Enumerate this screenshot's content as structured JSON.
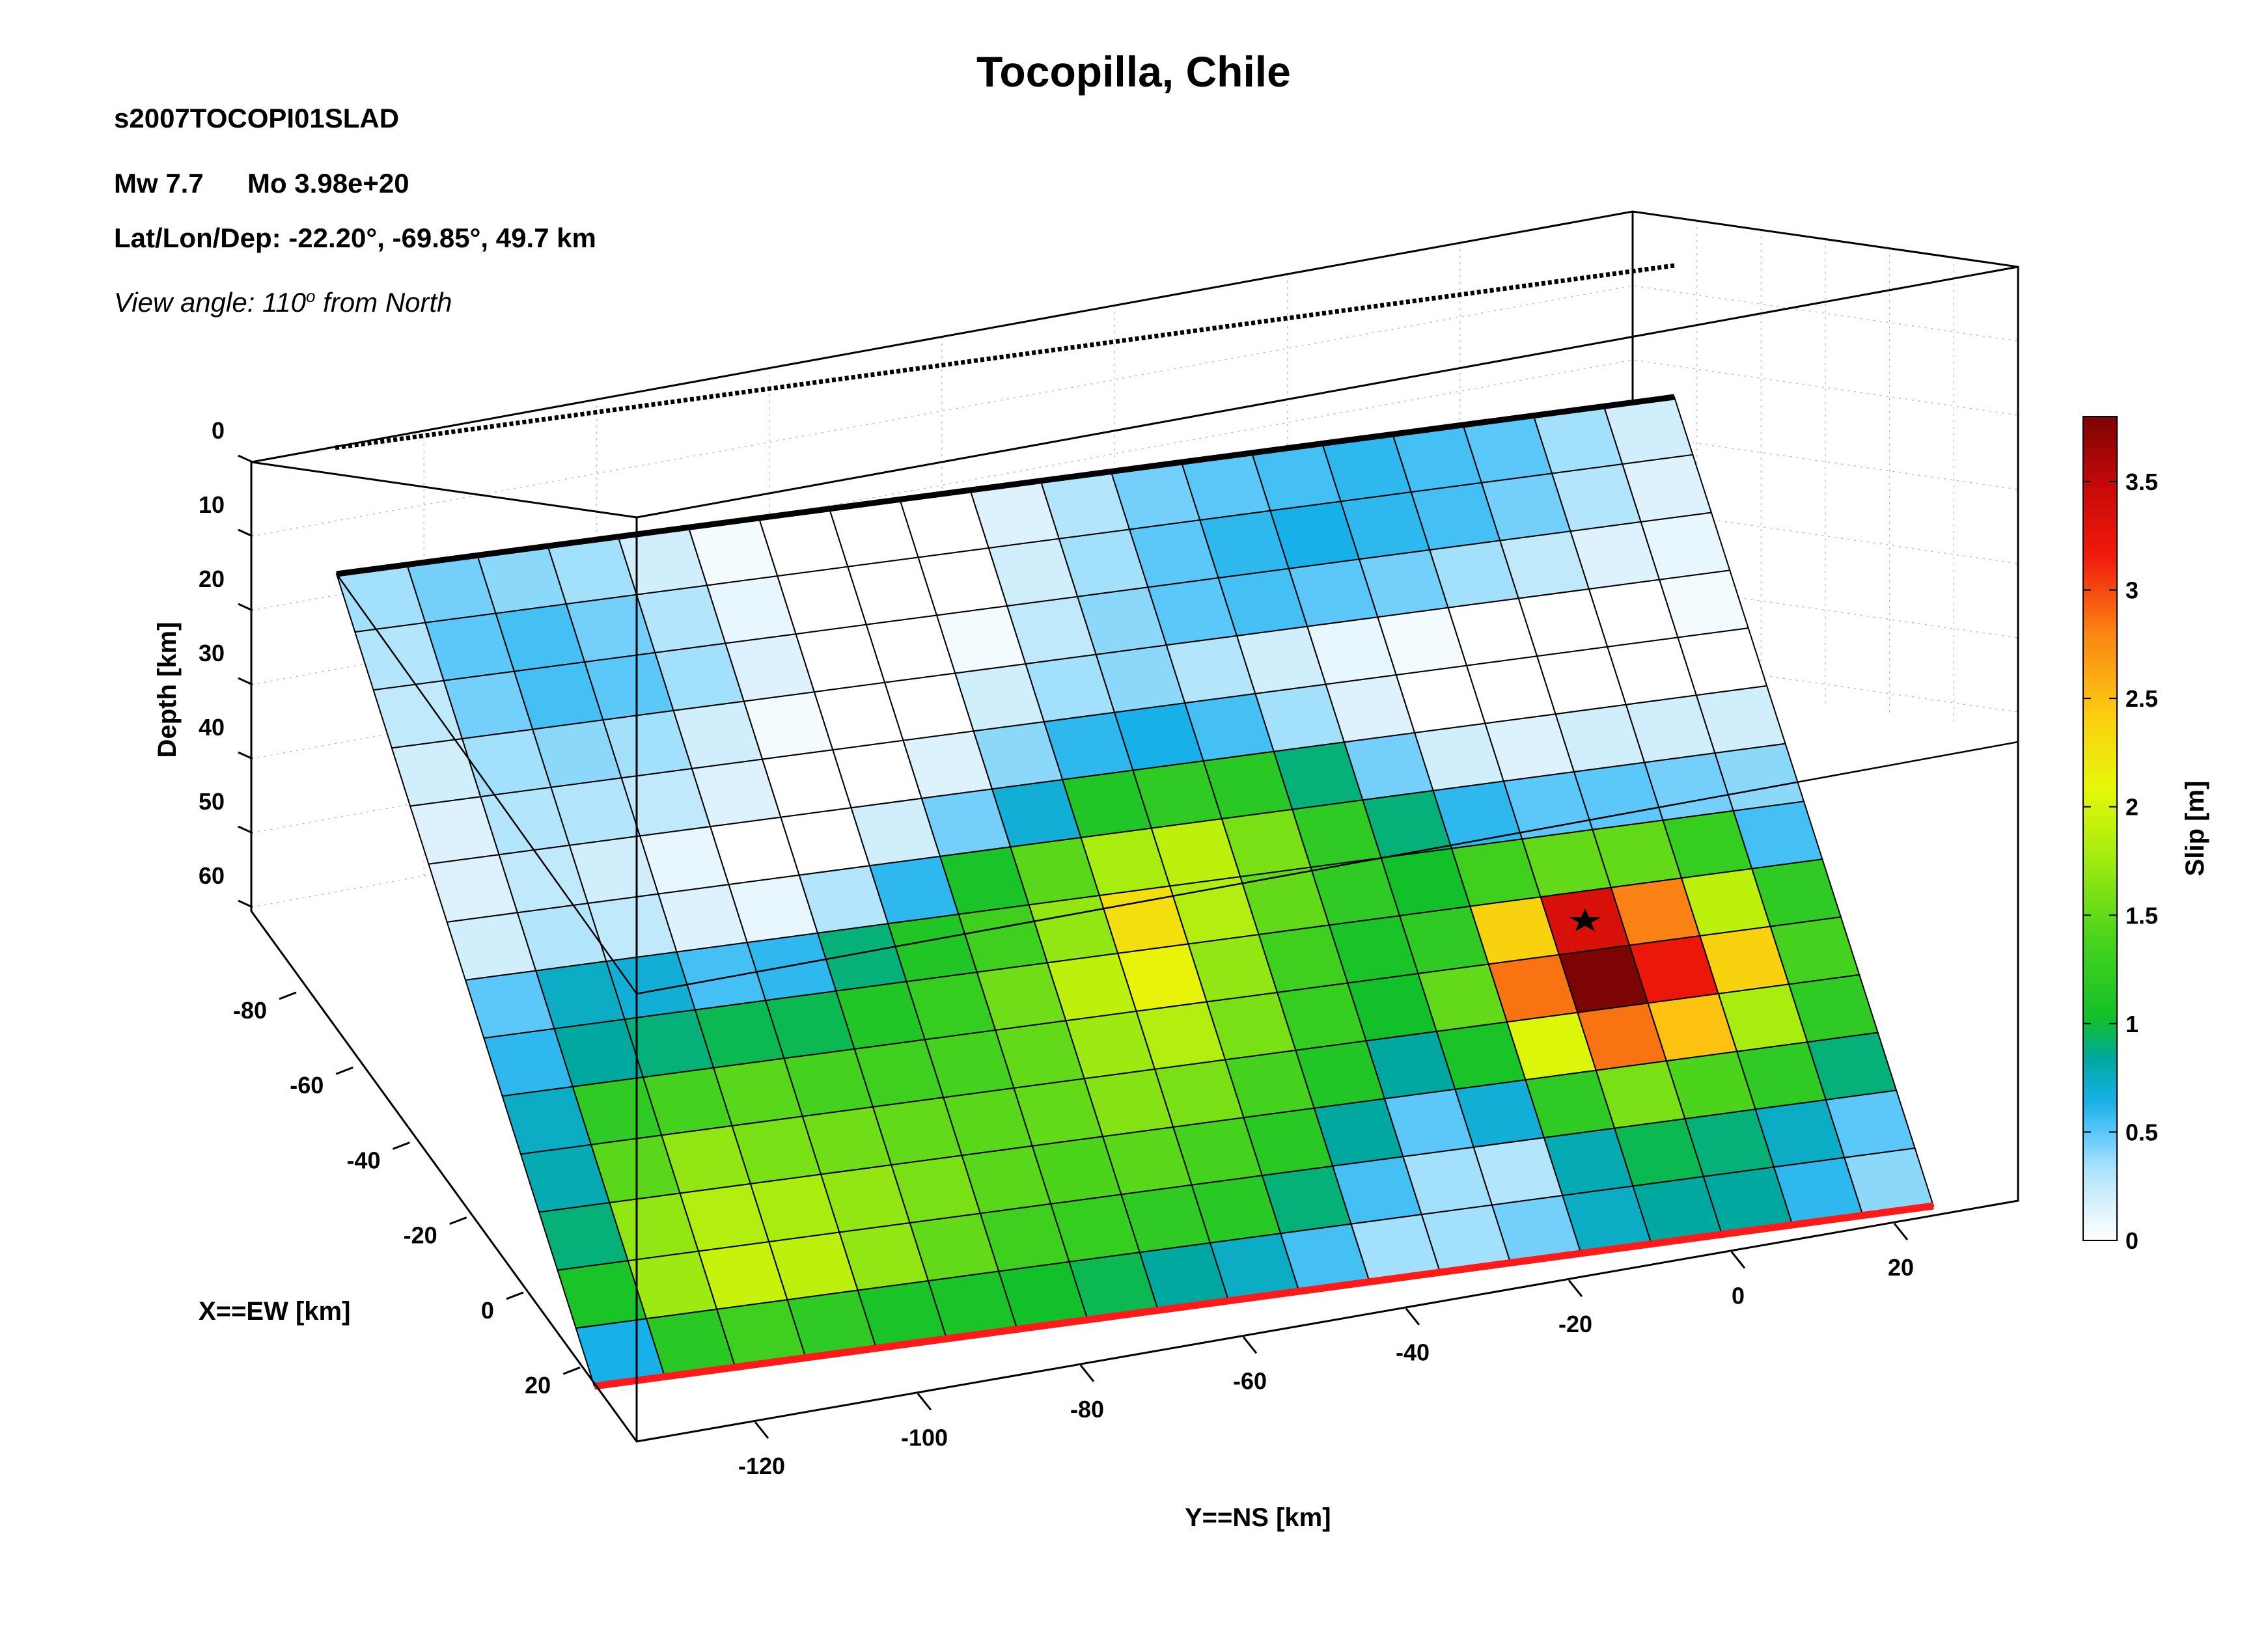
{
  "header": {
    "title": "Tocopilla, Chile",
    "event_id": "s2007TOCOPI01SLAD",
    "magnitude": "Mw 7.7",
    "moment": "Mo 3.98e+20",
    "location": "Lat/Lon/Dep: -22.20°, -69.85°, 49.7 km",
    "view_angle": "View angle: 110",
    "view_angle_sup": "o",
    "view_angle_suffix": " from North"
  },
  "colors": {
    "top_edge": "#000000",
    "bottom_edge": "#ff1a1a",
    "hypocenter": "#000000"
  },
  "chart_data": {
    "type": "heatmap",
    "x_axis": {
      "label": "X==EW [km]",
      "ticks": [
        -80,
        -60,
        -40,
        -20,
        0,
        20
      ]
    },
    "y_axis": {
      "label": "Y==NS [km]",
      "ticks": [
        -120,
        -100,
        -80,
        -60,
        -40,
        -20,
        0,
        20
      ]
    },
    "z_axis": {
      "label": "Depth [km]",
      "ticks": [
        0,
        10,
        20,
        30,
        40,
        50,
        60
      ]
    },
    "colorbar": {
      "label": "Slip [m]",
      "range": [
        0,
        3.8
      ],
      "ticks": [
        "0",
        "0.5",
        "1",
        "1.5",
        "2",
        "2.5",
        "3",
        "3.5"
      ]
    },
    "grid": true,
    "hypocenter_cell": {
      "row": 8,
      "col": 15
    },
    "slip_grid": [
      [
        0.35,
        0.45,
        0.4,
        0.35,
        0.2,
        0.05,
        0.0,
        0.0,
        0.0,
        0.15,
        0.3,
        0.45,
        0.5,
        0.55,
        0.6,
        0.55,
        0.5,
        0.35,
        0.2
      ],
      [
        0.3,
        0.5,
        0.55,
        0.45,
        0.3,
        0.1,
        0.0,
        0.0,
        0.0,
        0.2,
        0.35,
        0.5,
        0.6,
        0.65,
        0.6,
        0.55,
        0.45,
        0.3,
        0.15
      ],
      [
        0.25,
        0.45,
        0.55,
        0.5,
        0.35,
        0.15,
        0.0,
        0.0,
        0.05,
        0.25,
        0.4,
        0.5,
        0.55,
        0.5,
        0.45,
        0.35,
        0.25,
        0.15,
        0.1
      ],
      [
        0.2,
        0.35,
        0.4,
        0.35,
        0.2,
        0.05,
        0.0,
        0.0,
        0.2,
        0.35,
        0.4,
        0.3,
        0.2,
        0.1,
        0.05,
        0.0,
        0.0,
        0.0,
        0.05
      ],
      [
        0.15,
        0.3,
        0.3,
        0.25,
        0.15,
        0.0,
        0.0,
        0.15,
        0.4,
        0.6,
        0.65,
        0.55,
        0.35,
        0.15,
        0.0,
        0.0,
        0.0,
        0.0,
        0.0
      ],
      [
        0.15,
        0.25,
        0.2,
        0.1,
        0.0,
        0.0,
        0.2,
        0.45,
        0.7,
        1.1,
        1.2,
        1.15,
        0.9,
        0.45,
        0.2,
        0.15,
        0.2,
        0.2,
        0.2
      ],
      [
        0.2,
        0.3,
        0.25,
        0.15,
        0.1,
        0.3,
        0.6,
        1.05,
        1.45,
        1.8,
        1.9,
        1.6,
        1.2,
        0.9,
        0.6,
        0.5,
        0.5,
        0.45,
        0.4
      ],
      [
        0.5,
        0.75,
        0.7,
        0.55,
        0.6,
        0.9,
        1.1,
        1.3,
        1.7,
        2.3,
        1.85,
        1.5,
        1.2,
        1.0,
        1.3,
        1.5,
        1.5,
        1.25,
        0.55
      ],
      [
        0.6,
        0.85,
        0.9,
        0.95,
        0.95,
        1.1,
        1.25,
        1.55,
        1.9,
        2.15,
        1.7,
        1.3,
        1.05,
        1.2,
        2.4,
        3.35,
        2.8,
        1.9,
        1.2
      ],
      [
        0.75,
        1.2,
        1.35,
        1.45,
        1.35,
        1.3,
        1.35,
        1.5,
        1.75,
        1.85,
        1.6,
        1.25,
        1.0,
        1.5,
        2.85,
        3.8,
        3.2,
        2.4,
        1.35
      ],
      [
        0.8,
        1.45,
        1.7,
        1.6,
        1.55,
        1.5,
        1.45,
        1.5,
        1.65,
        1.6,
        1.35,
        1.1,
        0.85,
        1.05,
        2.05,
        2.85,
        2.5,
        1.8,
        1.2
      ],
      [
        0.9,
        1.7,
        1.85,
        1.8,
        1.7,
        1.6,
        1.45,
        1.4,
        1.45,
        1.35,
        1.15,
        0.85,
        0.5,
        0.7,
        1.2,
        1.6,
        1.4,
        1.2,
        0.9
      ],
      [
        1.05,
        1.75,
        1.95,
        1.9,
        1.7,
        1.5,
        1.3,
        1.25,
        1.2,
        1.15,
        0.9,
        0.55,
        0.35,
        0.3,
        0.8,
        0.95,
        0.9,
        0.75,
        0.5
      ],
      [
        0.65,
        1.15,
        1.3,
        1.2,
        1.05,
        1.05,
        1.0,
        0.95,
        0.85,
        0.75,
        0.55,
        0.35,
        0.35,
        0.45,
        0.75,
        0.85,
        0.85,
        0.6,
        0.4
      ]
    ]
  }
}
